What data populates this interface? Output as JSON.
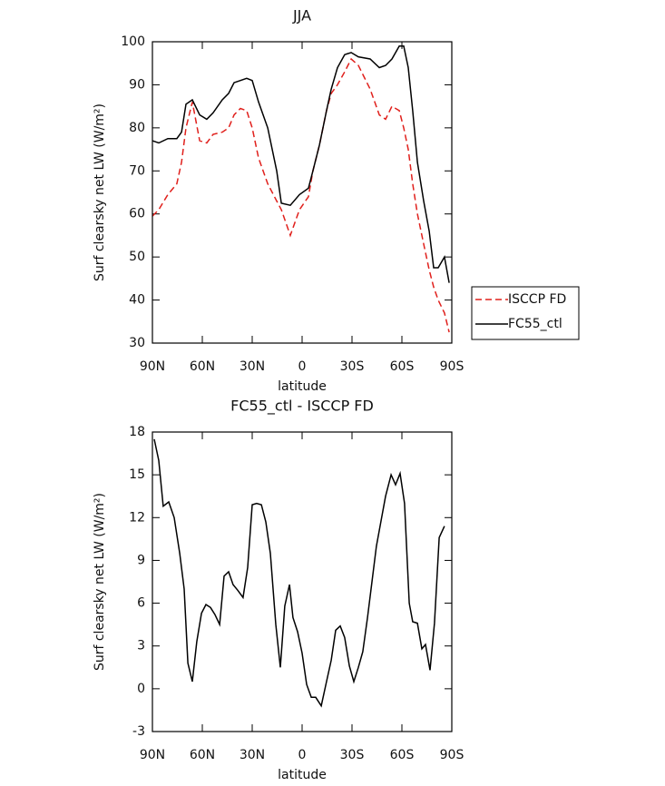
{
  "chart_data": [
    {
      "type": "line",
      "title": "JJA",
      "xlabel": "latitude",
      "ylabel": "Surf clearsky net LW (W/m²)",
      "x": [
        90,
        86.2,
        80.7,
        75.3,
        72.5,
        69.8,
        66,
        61.6,
        57.3,
        53.5,
        48,
        44.2,
        40.9,
        37.1,
        33.3,
        30,
        26.2,
        20.7,
        15.3,
        12.5,
        7.1,
        1.6,
        -3.8,
        -6.5,
        -10.4,
        -14.7,
        -17.5,
        -21.3,
        -25.6,
        -29.5,
        -33.8,
        -40.9,
        -46.4,
        -50.2,
        -54,
        -58.4,
        -61.1,
        -63.8,
        -66.5,
        -69.3,
        -73.1,
        -76.4,
        -79.1,
        -81.8,
        -85.6,
        -88.4
      ],
      "series": [
        {
          "name": "ISCCP FD",
          "color": "#e0201c",
          "line_style": "dashed",
          "values": [
            59.5,
            61,
            64.5,
            67,
            72,
            80,
            86,
            77,
            76.5,
            78.5,
            79,
            80,
            83,
            84.5,
            84,
            80,
            73,
            67,
            63,
            61,
            55,
            61,
            64,
            70,
            76,
            84,
            88,
            90,
            93,
            96,
            94.5,
            89,
            83,
            82,
            85,
            84,
            80,
            75,
            67,
            60,
            53,
            47,
            43,
            40,
            37,
            32.5
          ]
        },
        {
          "name": "FC55_ctl",
          "color": "#000000",
          "line_style": "solid",
          "values": [
            77,
            76.5,
            77.5,
            77.5,
            79,
            85.5,
            86.5,
            83,
            82,
            83.5,
            86.5,
            88,
            90.5,
            91,
            91.5,
            91,
            86,
            80,
            70,
            62.5,
            62,
            64.5,
            66,
            70,
            76,
            84,
            89,
            94,
            97,
            97.5,
            96.5,
            96,
            94,
            94.5,
            96,
            99,
            99,
            94,
            84,
            72,
            63,
            56,
            47.5,
            47.5,
            50,
            44
          ]
        }
      ],
      "xlim": [
        90,
        -90
      ],
      "ylim": [
        30,
        100
      ],
      "xticks": [
        {
          "value": 90,
          "label": "90N"
        },
        {
          "value": 60,
          "label": "60N"
        },
        {
          "value": 30,
          "label": "30N"
        },
        0,
        {
          "value": -30,
          "label": "30S"
        },
        {
          "value": -60,
          "label": "60S"
        },
        {
          "value": -90,
          "label": "90S"
        }
      ],
      "yticks": [
        30,
        40,
        50,
        60,
        70,
        80,
        90,
        100
      ],
      "legend": "outside right"
    },
    {
      "type": "line",
      "title": "FC55_ctl - ISCCP FD",
      "xlabel": "latitude",
      "ylabel": "Surf clearsky net LW (W/m²)",
      "x": [
        88.9,
        86.2,
        83.5,
        80.2,
        76.9,
        73.6,
        70.9,
        68.7,
        66,
        63.3,
        60.5,
        57.8,
        55.1,
        52.4,
        49.6,
        46.9,
        44.2,
        41.5,
        38.7,
        35.5,
        32.7,
        30,
        27.3,
        24.5,
        21.8,
        19.1,
        15.8,
        13.1,
        10.4,
        7.6,
        5.5,
        2.7,
        0,
        -2.7,
        -5.5,
        -8.2,
        -11.5,
        -14.7,
        -17.5,
        -20.2,
        -22.9,
        -25.6,
        -28.4,
        -31.1,
        -33.8,
        -36.5,
        -39.3,
        -42,
        -44.7,
        -47.5,
        -50.2,
        -53.5,
        -56.2,
        -58.9,
        -61.6,
        -64.4,
        -66.5,
        -69.3,
        -72,
        -74.2,
        -76.9,
        -79.6,
        -82.4,
        -85.6
      ],
      "values": [
        17.5,
        16,
        12.8,
        13.1,
        12,
        9.5,
        7,
        1.8,
        0.5,
        3.3,
        5.3,
        5.9,
        5.7,
        5.2,
        4.5,
        7.9,
        8.2,
        7.3,
        6.9,
        6.4,
        8.5,
        12.9,
        13,
        12.9,
        11.7,
        9.5,
        4.5,
        1.5,
        5.8,
        7.3,
        5,
        4,
        2.5,
        0.3,
        -0.6,
        -0.6,
        -1.2,
        0.5,
        2,
        4.1,
        4.4,
        3.6,
        1.6,
        0.5,
        1.5,
        2.6,
        5,
        7.5,
        10,
        11.8,
        13.5,
        15,
        14.3,
        15.1,
        13,
        6,
        4.7,
        4.6,
        2.8,
        3.1,
        1.3,
        4.6,
        10.6,
        11.4
      ],
      "color": "#000000",
      "line_style": "solid",
      "xlim": [
        90,
        -90
      ],
      "ylim": [
        -3,
        18
      ],
      "xticks": [
        {
          "value": 90,
          "label": "90N"
        },
        {
          "value": 60,
          "label": "60N"
        },
        {
          "value": 30,
          "label": "30N"
        },
        0,
        {
          "value": -30,
          "label": "30S"
        },
        {
          "value": -60,
          "label": "60S"
        },
        {
          "value": -90,
          "label": "90S"
        }
      ],
      "yticks": [
        -3,
        0,
        3,
        6,
        9,
        12,
        15,
        18
      ]
    }
  ]
}
